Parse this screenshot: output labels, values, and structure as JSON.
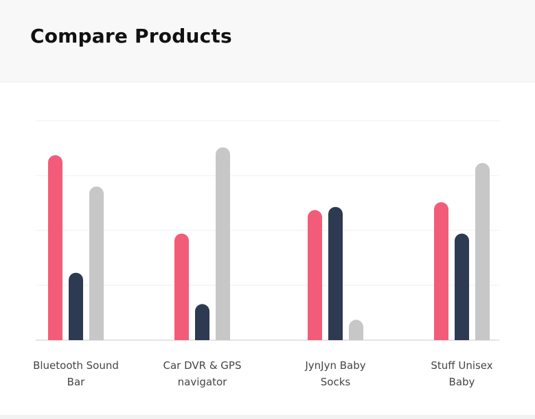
{
  "header": {
    "title": "Compare Products"
  },
  "chart_data": {
    "type": "bar",
    "title": "Compare Products",
    "xlabel": "",
    "ylabel": "",
    "ylim": [
      0,
      140
    ],
    "y_ticks_visible": false,
    "grid": true,
    "legend": "none",
    "categories": [
      [
        "Bluetooth Sound",
        "Bar"
      ],
      [
        "Car DVR & GPS",
        "navigator"
      ],
      [
        "JynJyn Baby",
        "Socks"
      ],
      [
        "Stuff Unisex",
        "Baby"
      ]
    ],
    "series": [
      {
        "color": "#f25c78",
        "values": [
          118,
          68,
          83,
          88
        ]
      },
      {
        "color": "#2e3a52",
        "values": [
          43,
          23,
          85,
          68
        ]
      },
      {
        "color": "#c7c7c7",
        "values": [
          98,
          123,
          13,
          113
        ]
      }
    ]
  }
}
